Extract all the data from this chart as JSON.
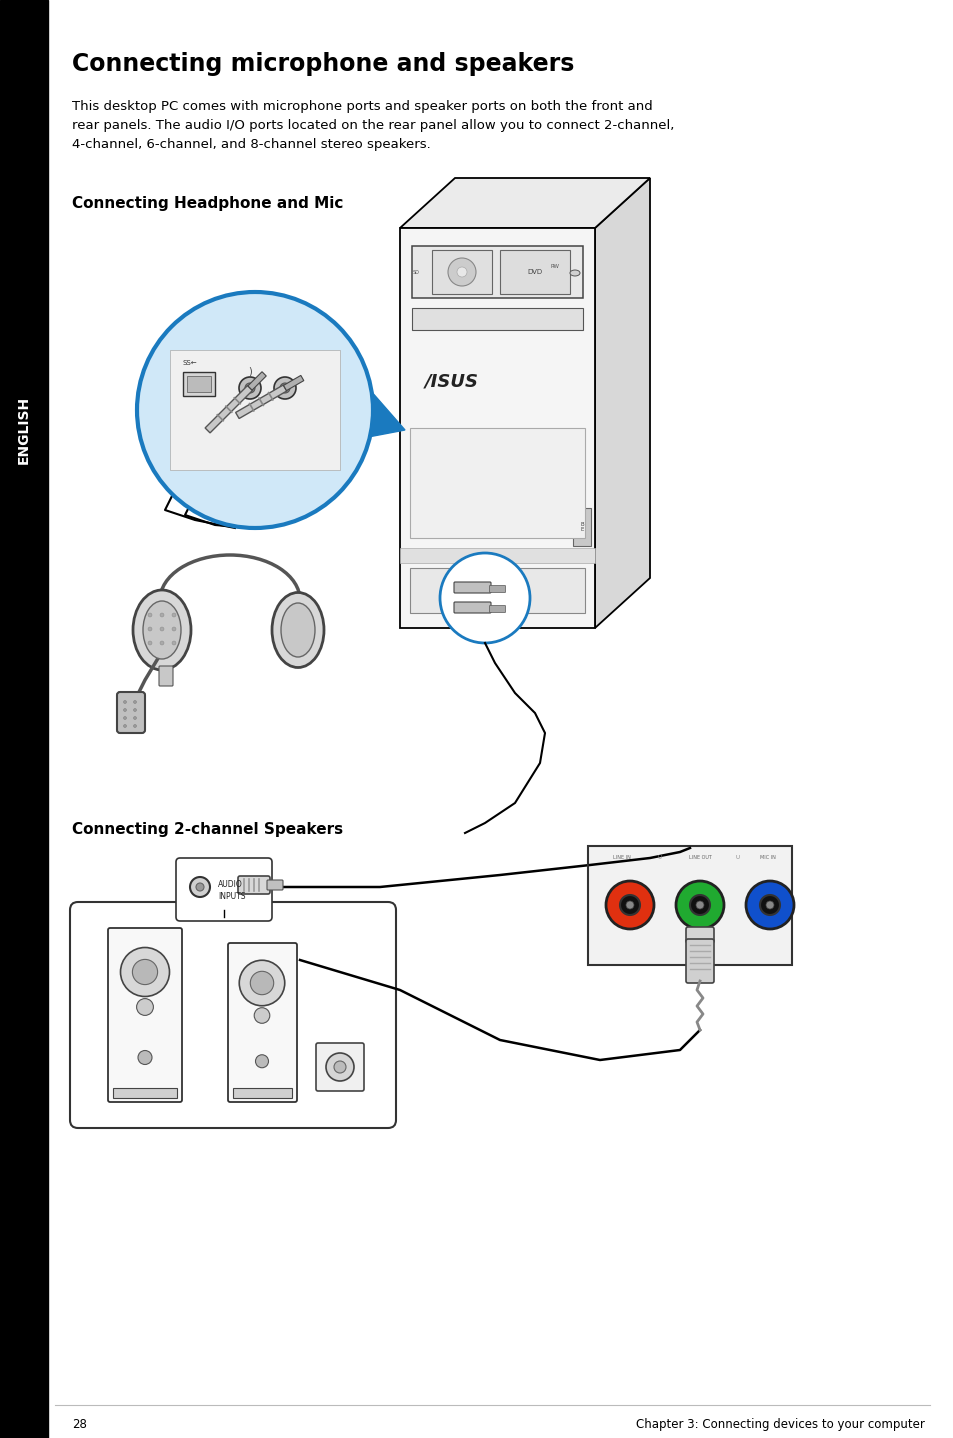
{
  "title": "Connecting microphone and speakers",
  "body_text": "This desktop PC comes with microphone ports and speaker ports on both the front and\nrear panels. The audio I/O ports located on the rear panel allow you to connect 2-channel,\n4-channel, 6-channel, and 8-channel stereo speakers.",
  "subtitle1": "Connecting Headphone and Mic",
  "subtitle2": "Connecting 2-channel Speakers",
  "page_number": "28",
  "footer_text": "Chapter 3: Connecting devices to your computer",
  "bg_color": "#ffffff",
  "text_color": "#000000",
  "sidebar_color": "#000000",
  "sidebar_text": "ENGLISH",
  "title_fontsize": 17,
  "body_fontsize": 9.5,
  "subtitle_fontsize": 11,
  "footer_fontsize": 8.5,
  "blue_color": "#1a7abf",
  "light_blue": "#d0e8f8",
  "lw": 1.3
}
